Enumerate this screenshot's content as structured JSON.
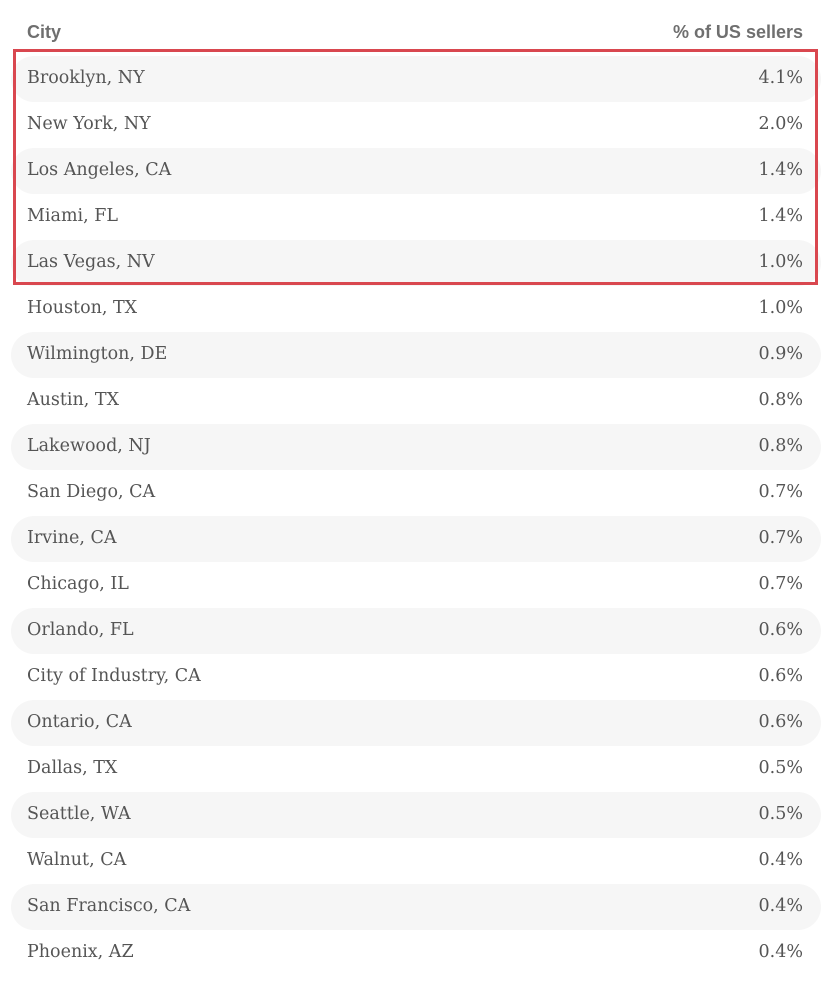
{
  "table": {
    "headers": {
      "city": "City",
      "percent": "% of US sellers"
    },
    "rows": [
      {
        "city": "Brooklyn, NY",
        "percent": "4.1%"
      },
      {
        "city": "New York, NY",
        "percent": "2.0%"
      },
      {
        "city": "Los Angeles, CA",
        "percent": "1.4%"
      },
      {
        "city": "Miami, FL",
        "percent": "1.4%"
      },
      {
        "city": "Las Vegas, NV",
        "percent": "1.0%"
      },
      {
        "city": "Houston, TX",
        "percent": "1.0%"
      },
      {
        "city": "Wilmington, DE",
        "percent": "0.9%"
      },
      {
        "city": "Austin, TX",
        "percent": "0.8%"
      },
      {
        "city": "Lakewood, NJ",
        "percent": "0.8%"
      },
      {
        "city": "San Diego, CA",
        "percent": "0.7%"
      },
      {
        "city": "Irvine, CA",
        "percent": "0.7%"
      },
      {
        "city": "Chicago, IL",
        "percent": "0.7%"
      },
      {
        "city": "Orlando, FL",
        "percent": "0.6%"
      },
      {
        "city": "City of Industry, CA",
        "percent": "0.6%"
      },
      {
        "city": "Ontario, CA",
        "percent": "0.6%"
      },
      {
        "city": "Dallas, TX",
        "percent": "0.5%"
      },
      {
        "city": "Seattle, WA",
        "percent": "0.5%"
      },
      {
        "city": "Walnut, CA",
        "percent": "0.4%"
      },
      {
        "city": "San Francisco, CA",
        "percent": "0.4%"
      },
      {
        "city": "Phoenix, AZ",
        "percent": "0.4%"
      }
    ]
  },
  "highlight": {
    "color": "#d9474f",
    "rows_highlighted": 5
  },
  "colors": {
    "header_text": "#6f6f6f",
    "body_text": "#555555",
    "stripe": "#f6f6f6"
  }
}
